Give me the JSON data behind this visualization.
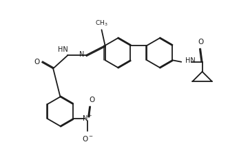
{
  "bond_color": "#1a1a1a",
  "text_color": "#1a1a1a",
  "background": "#ffffff",
  "bond_width": 1.3,
  "dbo": 0.035,
  "figsize": [
    3.47,
    2.19
  ],
  "dpi": 100,
  "xlim": [
    0.0,
    6.5
  ],
  "ylim": [
    -1.5,
    2.8
  ]
}
